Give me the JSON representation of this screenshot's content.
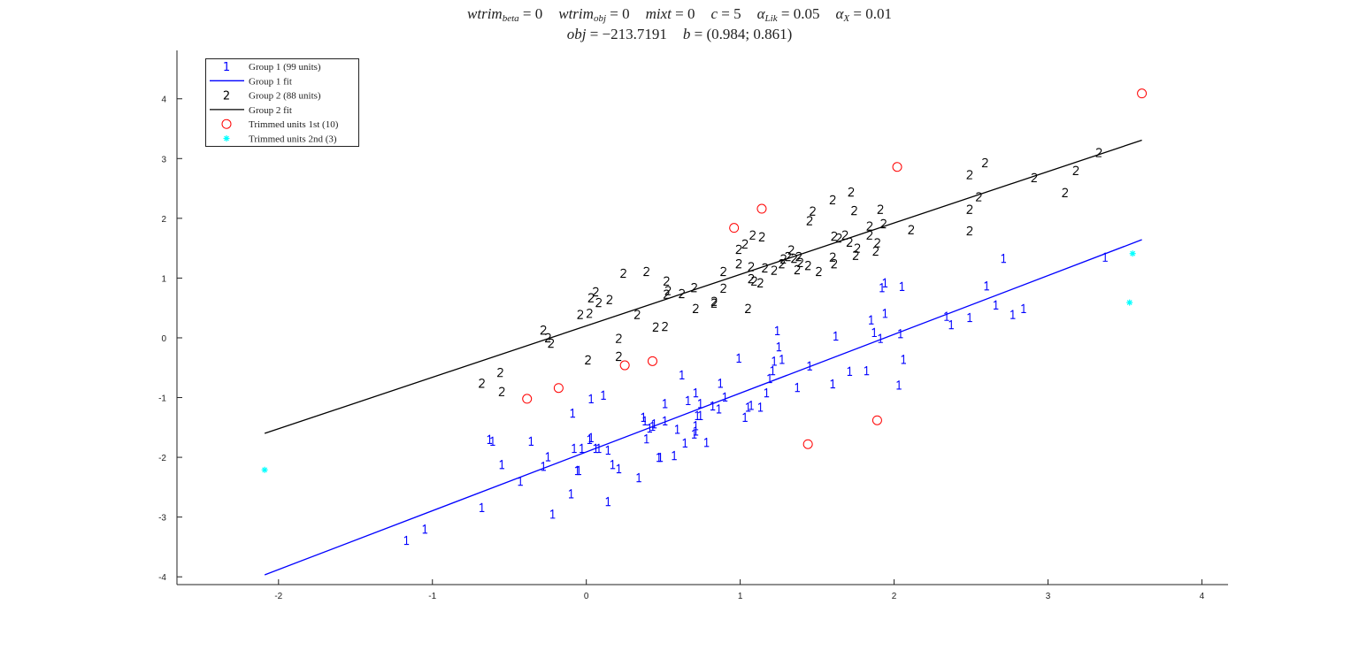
{
  "chart_data": {
    "type": "scatter",
    "title_line1": [
      {
        "base": "wtrim",
        "sub": "beta",
        "rest": " = 0"
      },
      {
        "base": "wtrim",
        "sub": "obj",
        "rest": " = 0"
      },
      {
        "base": "mixt",
        "sub": "",
        "rest": " = 0"
      },
      {
        "base": "c",
        "sub": "",
        "rest": " = 5"
      },
      {
        "base": "α",
        "sub": "Lik",
        "rest": " = 0.05"
      },
      {
        "base": "α",
        "sub": "X",
        "rest": " = 0.01"
      }
    ],
    "title_line2": [
      {
        "base": "obj",
        "sub": "",
        "rest": " = −213.7191"
      },
      {
        "base": "b",
        "sub": "",
        "rest": " = (0.984; 0.861)"
      }
    ],
    "xlim": [
      -2.66,
      4.17
    ],
    "ylim": [
      -4.13,
      4.81
    ],
    "xticks": [
      -2,
      -1,
      0,
      1,
      2,
      3,
      4
    ],
    "yticks": [
      -4,
      -3,
      -2,
      -1,
      0,
      1,
      2,
      3,
      4
    ],
    "grid": false,
    "legend_placement": "top-left",
    "colors": {
      "group1": "#0000ff",
      "group2": "#000000",
      "trimmed1": "#ff0000",
      "trimmed2": "#00ffff"
    },
    "legend": [
      {
        "label": "Group 1 (99 units)",
        "kind": "text"
      },
      {
        "label": "Group 1 fit",
        "kind": "line",
        "color": "#0000ff"
      },
      {
        "label": "Group 2 (88 units)",
        "kind": "text"
      },
      {
        "label": "Group 2 fit",
        "kind": "line",
        "color": "#000000"
      },
      {
        "label": "Trimmed units 1st (10)",
        "kind": "circle",
        "color": "#ff0000"
      },
      {
        "label": "Trimmed units 2nd (3)",
        "kind": "star",
        "color": "#00ffff"
      }
    ],
    "fits": [
      {
        "name": "Group 1 fit",
        "slope": 0.984,
        "intercept": -1.91,
        "x_range": [
          -2.09,
          3.61
        ]
      },
      {
        "name": "Group 2 fit",
        "slope": 0.861,
        "intercept": 0.2,
        "x_range": [
          -2.09,
          3.61
        ]
      }
    ],
    "group1_marker": "1",
    "group2_marker": "2",
    "group1": [
      [
        -1.17,
        -3.39
      ],
      [
        -1.05,
        -3.2
      ],
      [
        -0.68,
        -2.84
      ],
      [
        -0.63,
        -1.7
      ],
      [
        -0.61,
        -1.73
      ],
      [
        -0.55,
        -2.12
      ],
      [
        -0.43,
        -2.4
      ],
      [
        -0.36,
        -1.73
      ],
      [
        -0.28,
        -2.15
      ],
      [
        -0.25,
        -1.99
      ],
      [
        -0.22,
        -2.95
      ],
      [
        -0.1,
        -2.61
      ],
      [
        -0.09,
        -1.26
      ],
      [
        -0.08,
        -1.85
      ],
      [
        -0.06,
        -2.22
      ],
      [
        -0.05,
        -2.22
      ],
      [
        -0.03,
        -1.85
      ],
      [
        0.02,
        -1.7
      ],
      [
        0.03,
        -1.67
      ],
      [
        0.03,
        -1.02
      ],
      [
        0.06,
        -1.85
      ],
      [
        0.08,
        -1.85
      ],
      [
        0.11,
        -0.96
      ],
      [
        0.14,
        -1.88
      ],
      [
        0.14,
        -2.74
      ],
      [
        0.17,
        -2.12
      ],
      [
        0.21,
        -2.19
      ],
      [
        0.34,
        -2.34
      ],
      [
        0.37,
        -1.33
      ],
      [
        0.38,
        -1.39
      ],
      [
        0.39,
        -1.69
      ],
      [
        0.41,
        -1.51
      ],
      [
        0.43,
        -1.48
      ],
      [
        0.44,
        -1.44
      ],
      [
        0.47,
        -2.0
      ],
      [
        0.48,
        -2.0
      ],
      [
        0.51,
        -1.1
      ],
      [
        0.51,
        -1.39
      ],
      [
        0.57,
        -1.97
      ],
      [
        0.59,
        -1.53
      ],
      [
        0.62,
        -0.62
      ],
      [
        0.64,
        -1.76
      ],
      [
        0.66,
        -1.05
      ],
      [
        0.7,
        -1.61
      ],
      [
        0.71,
        -0.92
      ],
      [
        0.71,
        -1.47
      ],
      [
        0.71,
        -1.56
      ],
      [
        0.72,
        -1.3
      ],
      [
        0.74,
        -1.1
      ],
      [
        0.74,
        -1.3
      ],
      [
        0.78,
        -1.75
      ],
      [
        0.82,
        -1.14
      ],
      [
        0.86,
        -1.19
      ],
      [
        0.87,
        -0.76
      ],
      [
        0.9,
        -0.99
      ],
      [
        0.99,
        -0.34
      ],
      [
        1.03,
        -1.33
      ],
      [
        1.05,
        -1.16
      ],
      [
        1.07,
        -1.13
      ],
      [
        1.13,
        -1.16
      ],
      [
        1.17,
        -0.92
      ],
      [
        1.19,
        -0.68
      ],
      [
        1.21,
        -0.55
      ],
      [
        1.22,
        -0.39
      ],
      [
        1.24,
        0.12
      ],
      [
        1.25,
        -0.15
      ],
      [
        1.27,
        -0.36
      ],
      [
        1.37,
        -0.83
      ],
      [
        1.45,
        -0.47
      ],
      [
        1.6,
        -0.77
      ],
      [
        1.62,
        0.03
      ],
      [
        1.71,
        -0.56
      ],
      [
        1.82,
        -0.55
      ],
      [
        1.85,
        0.3
      ],
      [
        1.87,
        0.09
      ],
      [
        1.91,
        -0.01
      ],
      [
        1.92,
        0.84
      ],
      [
        1.94,
        0.41
      ],
      [
        1.94,
        0.92
      ],
      [
        2.03,
        -0.79
      ],
      [
        2.04,
        0.07
      ],
      [
        2.05,
        0.86
      ],
      [
        2.06,
        -0.36
      ],
      [
        2.34,
        0.36
      ],
      [
        2.37,
        0.22
      ],
      [
        2.49,
        0.34
      ],
      [
        2.6,
        0.87
      ],
      [
        2.66,
        0.55
      ],
      [
        2.71,
        1.33
      ],
      [
        2.77,
        0.39
      ],
      [
        2.84,
        0.49
      ],
      [
        3.37,
        1.35
      ]
    ],
    "group2": [
      [
        -0.68,
        -0.76
      ],
      [
        -0.56,
        -0.58
      ],
      [
        -0.55,
        -0.9
      ],
      [
        -0.28,
        0.13
      ],
      [
        -0.25,
        0.0
      ],
      [
        -0.23,
        -0.09
      ],
      [
        -0.04,
        0.39
      ],
      [
        0.02,
        0.41
      ],
      [
        0.01,
        -0.37
      ],
      [
        0.03,
        0.67
      ],
      [
        0.06,
        0.77
      ],
      [
        0.08,
        0.59
      ],
      [
        0.15,
        0.64
      ],
      [
        0.21,
        -0.01
      ],
      [
        0.21,
        -0.31
      ],
      [
        0.24,
        1.08
      ],
      [
        0.33,
        0.39
      ],
      [
        0.39,
        1.11
      ],
      [
        0.45,
        0.18
      ],
      [
        0.51,
        0.19
      ],
      [
        0.52,
        0.73
      ],
      [
        0.52,
        0.95
      ],
      [
        0.53,
        0.79
      ],
      [
        0.62,
        0.74
      ],
      [
        0.7,
        0.84
      ],
      [
        0.71,
        0.49
      ],
      [
        0.83,
        0.58
      ],
      [
        0.83,
        0.61
      ],
      [
        0.89,
        0.83
      ],
      [
        0.89,
        1.11
      ],
      [
        0.99,
        1.48
      ],
      [
        0.99,
        1.24
      ],
      [
        1.03,
        1.57
      ],
      [
        1.05,
        0.49
      ],
      [
        1.08,
        1.72
      ],
      [
        1.07,
        0.99
      ],
      [
        1.07,
        1.19
      ],
      [
        1.09,
        0.95
      ],
      [
        1.13,
        0.92
      ],
      [
        1.14,
        1.69
      ],
      [
        1.16,
        1.17
      ],
      [
        1.22,
        1.13
      ],
      [
        1.27,
        1.24
      ],
      [
        1.28,
        1.32
      ],
      [
        1.31,
        1.36
      ],
      [
        1.33,
        1.47
      ],
      [
        1.35,
        1.33
      ],
      [
        1.37,
        1.14
      ],
      [
        1.38,
        1.36
      ],
      [
        1.39,
        1.26
      ],
      [
        1.44,
        1.21
      ],
      [
        1.45,
        1.96
      ],
      [
        1.47,
        2.12
      ],
      [
        1.51,
        1.11
      ],
      [
        1.6,
        1.35
      ],
      [
        1.61,
        1.7
      ],
      [
        1.61,
        1.24
      ],
      [
        1.64,
        1.67
      ],
      [
        1.6,
        2.31
      ],
      [
        1.68,
        1.72
      ],
      [
        1.71,
        1.6
      ],
      [
        1.72,
        2.44
      ],
      [
        1.74,
        2.13
      ],
      [
        1.75,
        1.38
      ],
      [
        1.76,
        1.5
      ],
      [
        1.84,
        1.87
      ],
      [
        1.84,
        1.72
      ],
      [
        1.88,
        1.45
      ],
      [
        1.89,
        1.59
      ],
      [
        1.91,
        2.15
      ],
      [
        1.93,
        1.91
      ],
      [
        2.11,
        1.81
      ],
      [
        2.49,
        2.73
      ],
      [
        2.49,
        2.15
      ],
      [
        2.49,
        1.79
      ],
      [
        2.55,
        2.36
      ],
      [
        2.59,
        2.93
      ],
      [
        2.91,
        2.68
      ],
      [
        3.11,
        2.43
      ],
      [
        3.18,
        2.8
      ],
      [
        3.33,
        3.1
      ]
    ],
    "trimmed1": [
      [
        -0.385,
        -1.02
      ],
      [
        -0.18,
        -0.84
      ],
      [
        0.25,
        -0.46
      ],
      [
        0.43,
        -0.39
      ],
      [
        0.96,
        1.84
      ],
      [
        1.14,
        2.16
      ],
      [
        2.02,
        2.86
      ],
      [
        3.61,
        4.09
      ],
      [
        1.44,
        -1.78
      ],
      [
        1.89,
        -1.38
      ]
    ],
    "trimmed2": [
      [
        -2.09,
        -2.21
      ],
      [
        3.55,
        1.41
      ],
      [
        3.53,
        0.59
      ]
    ]
  }
}
